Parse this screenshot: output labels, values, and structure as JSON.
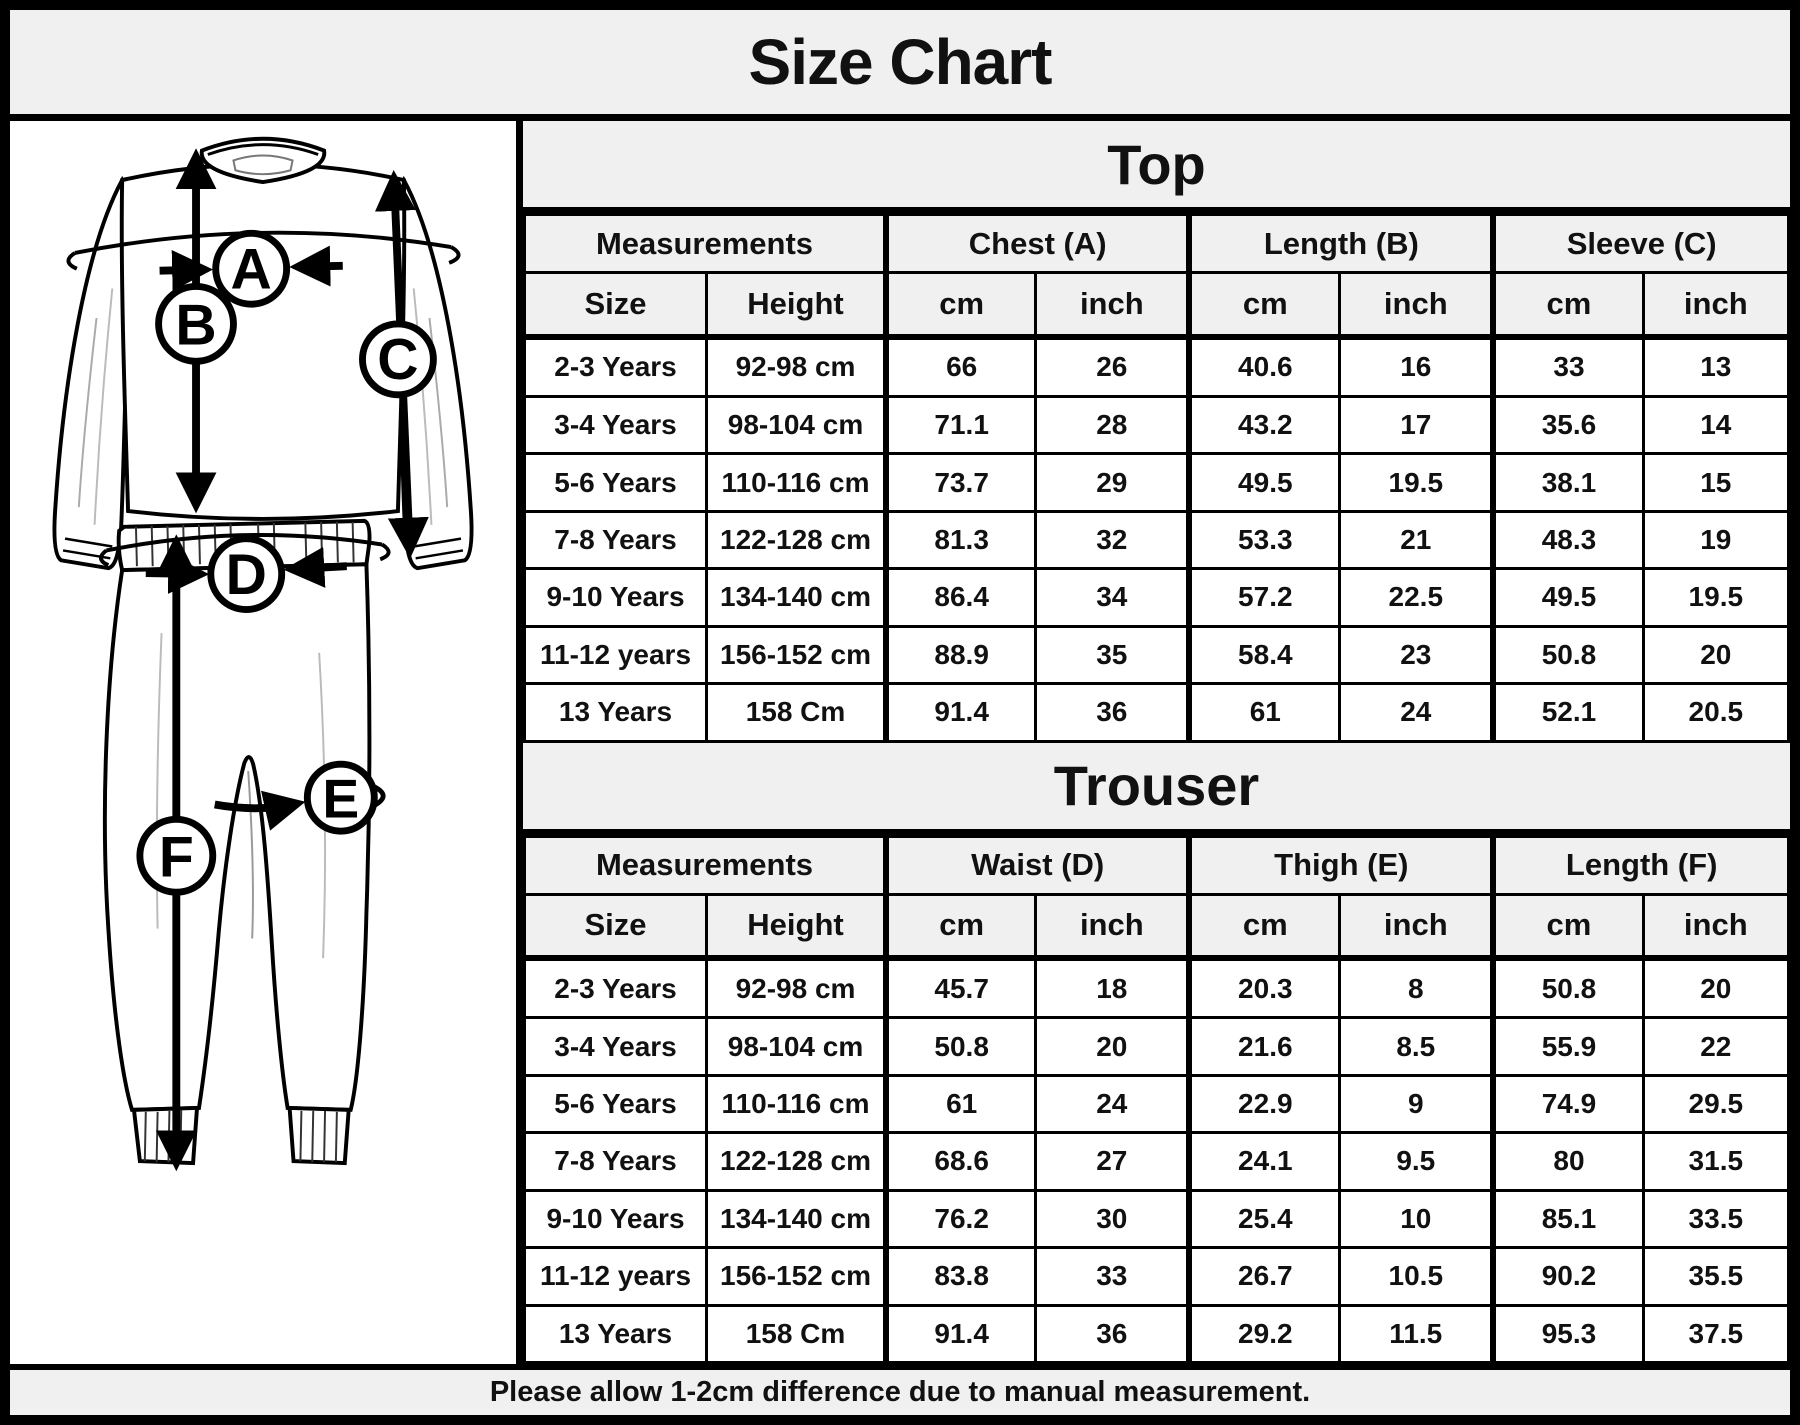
{
  "title": "Size Chart",
  "footer_note": "Please allow 1-2cm difference due to manual measurement.",
  "colors": {
    "band_bg": "#f0f0f0",
    "cell_bg": "#ffffff",
    "line": "#000000"
  },
  "illustration": {
    "description": "line sketch of long-sleeve top and trousers with measurement arrows",
    "labels": [
      "A",
      "B",
      "C",
      "D",
      "E",
      "F"
    ]
  },
  "tables": [
    {
      "section_title": "Top",
      "group_headers": [
        "Measurements",
        "Chest (A)",
        "Length (B)",
        "Sleeve (C)"
      ],
      "sub_headers": [
        "Size",
        "Height",
        "cm",
        "inch",
        "cm",
        "inch",
        "cm",
        "inch"
      ],
      "rows": [
        [
          "2-3 Years",
          "92-98 cm",
          "66",
          "26",
          "40.6",
          "16",
          "33",
          "13"
        ],
        [
          "3-4 Years",
          "98-104 cm",
          "71.1",
          "28",
          "43.2",
          "17",
          "35.6",
          "14"
        ],
        [
          "5-6 Years",
          "110-116 cm",
          "73.7",
          "29",
          "49.5",
          "19.5",
          "38.1",
          "15"
        ],
        [
          "7-8 Years",
          "122-128 cm",
          "81.3",
          "32",
          "53.3",
          "21",
          "48.3",
          "19"
        ],
        [
          "9-10 Years",
          "134-140 cm",
          "86.4",
          "34",
          "57.2",
          "22.5",
          "49.5",
          "19.5"
        ],
        [
          "11-12 years",
          "156-152 cm",
          "88.9",
          "35",
          "58.4",
          "23",
          "50.8",
          "20"
        ],
        [
          "13 Years",
          "158 Cm",
          "91.4",
          "36",
          "61",
          "24",
          "52.1",
          "20.5"
        ]
      ]
    },
    {
      "section_title": "Trouser",
      "group_headers": [
        "Measurements",
        "Waist (D)",
        "Thigh (E)",
        "Length (F)"
      ],
      "sub_headers": [
        "Size",
        "Height",
        "cm",
        "inch",
        "cm",
        "inch",
        "cm",
        "inch"
      ],
      "rows": [
        [
          "2-3 Years",
          "92-98 cm",
          "45.7",
          "18",
          "20.3",
          "8",
          "50.8",
          "20"
        ],
        [
          "3-4 Years",
          "98-104 cm",
          "50.8",
          "20",
          "21.6",
          "8.5",
          "55.9",
          "22"
        ],
        [
          "5-6 Years",
          "110-116 cm",
          "61",
          "24",
          "22.9",
          "9",
          "74.9",
          "29.5"
        ],
        [
          "7-8 Years",
          "122-128 cm",
          "68.6",
          "27",
          "24.1",
          "9.5",
          "80",
          "31.5"
        ],
        [
          "9-10 Years",
          "134-140 cm",
          "76.2",
          "30",
          "25.4",
          "10",
          "85.1",
          "33.5"
        ],
        [
          "11-12 years",
          "156-152 cm",
          "83.8",
          "33",
          "26.7",
          "10.5",
          "90.2",
          "35.5"
        ],
        [
          "13 Years",
          "158 Cm",
          "91.4",
          "36",
          "29.2",
          "11.5",
          "95.3",
          "37.5"
        ]
      ]
    }
  ]
}
